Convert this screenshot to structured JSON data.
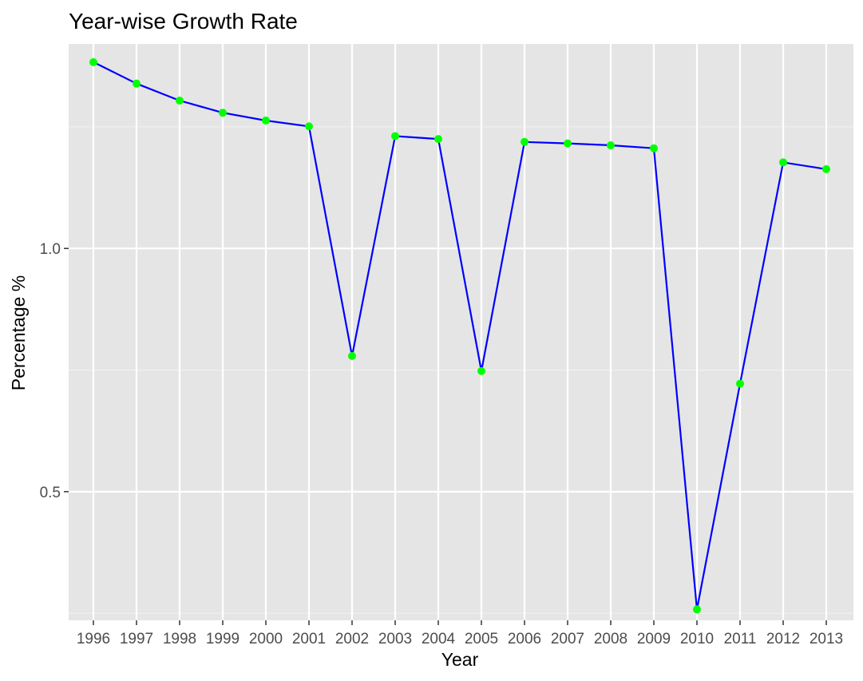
{
  "chart_data": {
    "type": "line",
    "title": "Year-wise Growth Rate",
    "xlabel": "Year",
    "ylabel": "Percentage %",
    "categories": [
      "1996",
      "1997",
      "1998",
      "1999",
      "2000",
      "2001",
      "2002",
      "2003",
      "2004",
      "2005",
      "2006",
      "2007",
      "2008",
      "2009",
      "2010",
      "2011",
      "2012",
      "2013"
    ],
    "series": [
      {
        "values": [
          1.383,
          1.339,
          1.304,
          1.279,
          1.263,
          1.251,
          0.779,
          1.231,
          1.225,
          0.748,
          1.219,
          1.216,
          1.212,
          1.206,
          0.258,
          0.722,
          1.177,
          1.163
        ]
      }
    ],
    "y_ticks": [
      0.5,
      1.0
    ],
    "y_tick_labels": [
      "0.5",
      "1.0"
    ],
    "ylim": [
      0.2355,
      1.4205
    ],
    "grid": true,
    "legend": "none",
    "colors": {
      "panel_background": "#e5e5e5",
      "grid_major": "#ffffff",
      "grid_minor": "#f2f2f2",
      "line": "#0000ff",
      "points": "#00ff00",
      "ticks": "#333333"
    }
  }
}
